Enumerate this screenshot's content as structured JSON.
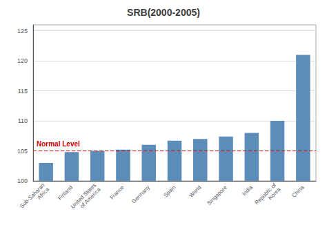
{
  "chart_data": {
    "type": "bar",
    "title": "SRB(2000-2005)",
    "categories": [
      "Sub-Saharan\nAfrica",
      "Finland",
      "United States\nof America",
      "France",
      "Germany",
      "Spain",
      "World",
      "Singapore",
      "India",
      "Republic of\nKorea",
      "China"
    ],
    "values": [
      103.0,
      104.8,
      105.0,
      105.2,
      106.0,
      106.7,
      107.0,
      107.4,
      108.0,
      110.0,
      121.0
    ],
    "color": "#5b8db8",
    "ylim": [
      100,
      126
    ],
    "yticks": [
      100,
      105,
      110,
      115,
      120,
      125
    ],
    "grid": true,
    "annotations": [
      {
        "text": "Normal Level",
        "y": 105.0,
        "color": "#cc0000",
        "line_style": "dashed"
      }
    ]
  }
}
